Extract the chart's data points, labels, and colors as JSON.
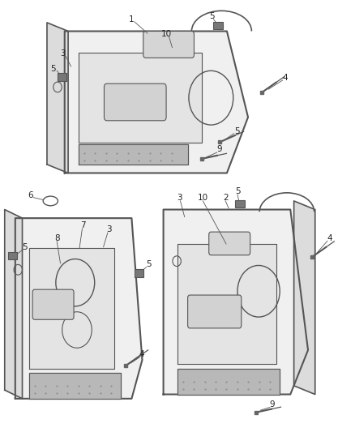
{
  "bg_color": "#ffffff",
  "line_color": "#555555",
  "dark_line": "#333333",
  "fill_color": "#e8e8e8",
  "figsize": [
    4.38,
    5.33
  ],
  "dpi": 100
}
